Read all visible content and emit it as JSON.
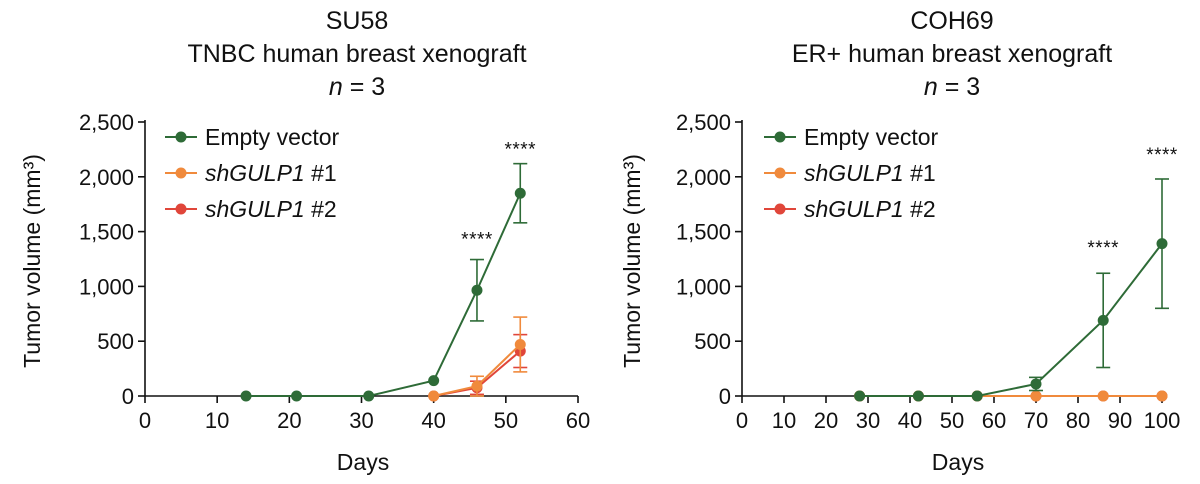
{
  "chart_data": [
    {
      "type": "line",
      "title_lines": [
        "SU58",
        "TNBC human breast xenograft",
        "n = 3"
      ],
      "n_label": {
        "italic": "n",
        "rest": " = 3"
      },
      "xlabel": "Days",
      "ylabel": "Tumor volume (mm³)",
      "xlim": [
        0,
        60
      ],
      "ylim": [
        0,
        2500
      ],
      "xticks": [
        "0",
        "10",
        "20",
        "30",
        "40",
        "50",
        "60"
      ],
      "yticks": [
        "0",
        "500",
        "1,000",
        "1,500",
        "2,000",
        "2,500"
      ],
      "legend_position": "top-left",
      "series": [
        {
          "name": "Empty vector",
          "name_italic": "",
          "name_rest": "Empty vector",
          "color": "#2e6b37",
          "x": [
            14,
            21,
            31,
            40,
            46,
            52
          ],
          "y": [
            0,
            0,
            0,
            140,
            965,
            1850
          ],
          "err": [
            0,
            0,
            0,
            0,
            280,
            270
          ]
        },
        {
          "name": "shGULP1 #1",
          "name_italic": "shGULP1",
          "name_rest": " #1",
          "color": "#f08a3c",
          "x": [
            40,
            46,
            52
          ],
          "y": [
            0,
            90,
            470
          ],
          "err": [
            0,
            90,
            250
          ]
        },
        {
          "name": "shGULP1 #2",
          "name_italic": "shGULP1",
          "name_rest": " #2",
          "color": "#e0463a",
          "x": [
            40,
            46,
            52
          ],
          "y": [
            0,
            75,
            410
          ],
          "err": [
            0,
            60,
            150
          ]
        }
      ],
      "annotations": [
        {
          "text": "****",
          "x": 46,
          "y": 1430
        },
        {
          "text": "****",
          "x": 52,
          "y": 2250
        }
      ]
    },
    {
      "type": "line",
      "title_lines": [
        "COH69",
        "ER+ human breast xenograft",
        "n = 3"
      ],
      "n_label": {
        "italic": "n",
        "rest": " = 3"
      },
      "xlabel": "Days",
      "ylabel": "Tumor volume (mm³)",
      "xlim": [
        0,
        100
      ],
      "ylim": [
        0,
        2500
      ],
      "xticks": [
        "0",
        "10",
        "20",
        "30",
        "40",
        "50",
        "60",
        "70",
        "80",
        "90",
        "100"
      ],
      "yticks": [
        "0",
        "500",
        "1,000",
        "1,500",
        "2,000",
        "2,500"
      ],
      "legend_position": "top-left",
      "series": [
        {
          "name": "Empty vector",
          "name_italic": "",
          "name_rest": "Empty vector",
          "color": "#2e6b37",
          "x": [
            28,
            42,
            56,
            70,
            86,
            100
          ],
          "y": [
            0,
            0,
            0,
            110,
            690,
            1390
          ],
          "err": [
            0,
            0,
            0,
            60,
            430,
            590
          ]
        },
        {
          "name": "shGULP1 #1",
          "name_italic": "shGULP1",
          "name_rest": " #1",
          "color": "#f08a3c",
          "x": [
            28,
            42,
            56,
            70,
            86,
            100
          ],
          "y": [
            0,
            0,
            0,
            0,
            0,
            0
          ],
          "err": [
            0,
            0,
            0,
            0,
            0,
            0
          ]
        },
        {
          "name": "shGULP1 #2",
          "name_italic": "shGULP1",
          "name_rest": " #2",
          "color": "#e0463a",
          "x": [
            28,
            42,
            56,
            70,
            86,
            100
          ],
          "y": [
            0,
            0,
            0,
            0,
            0,
            0
          ],
          "err": [
            0,
            0,
            0,
            0,
            0,
            0
          ]
        }
      ],
      "annotations": [
        {
          "text": "****",
          "x": 86,
          "y": 1350
        },
        {
          "text": "****",
          "x": 100,
          "y": 2200
        }
      ]
    }
  ]
}
